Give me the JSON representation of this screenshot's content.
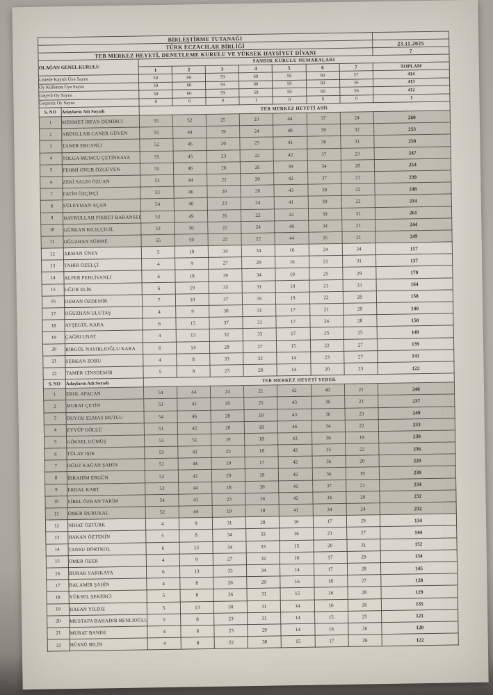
{
  "colors": {
    "paper": "#d6d3ca",
    "highlight_row": "#c4c1b6",
    "border": "#4a473f"
  },
  "document": {
    "title": "BİRLEŞTİRME TUTANAĞI",
    "organization": "TÜRK ECZACILAR BİRLİĞİ",
    "subtitle": "TEB MERKEZ HEYETİ, DENETLEME KURULU VE YÜKSEK HAYSİYET DİVANI",
    "date": "23.11.2025",
    "ballot_box_count": "7",
    "left_header": "OLAĞAN GENEL KURULU",
    "columns_header": "SANDIK KURULU NUMARALARI",
    "ballot_columns": [
      "1",
      "2",
      "3",
      "4",
      "5",
      "6",
      "7"
    ],
    "total_label": "TOPLAM",
    "sno_label": "S. NO",
    "name_label": "Adayların Adı Soyadı",
    "stats": [
      {
        "label": "Listede Kayıtlı Üye Sayısı",
        "values": [
          "59",
          "60",
          "59",
          "60",
          "59",
          "60",
          "57"
        ],
        "total": "414"
      },
      {
        "label": "Oy Kullanan Üye Sayısı",
        "values": [
          "59",
          "60",
          "59",
          "60",
          "59",
          "60",
          "56"
        ],
        "total": "413"
      },
      {
        "label": "Geçerli Oy Sayısı",
        "values": [
          "59",
          "60",
          "59",
          "59",
          "59",
          "60",
          "56"
        ],
        "total": "412"
      },
      {
        "label": "Geçersiz Oy Sayısı",
        "values": [
          "0",
          "0",
          "0",
          "1",
          "0",
          "0",
          "0"
        ],
        "total": "1"
      }
    ],
    "sections": [
      {
        "title": "TEB MERKEZ HEYETİ ASİL",
        "candidates": [
          {
            "no": "1",
            "name": "MEHMET İRFAN DEMİRCİ",
            "votes": [
              "55",
              "52",
              "25",
              "23",
              "44",
              "37",
              "24"
            ],
            "total": "260"
          },
          {
            "no": "2",
            "name": "ABDULLAH CANER GÜVEN",
            "votes": [
              "55",
              "44",
              "19",
              "24",
              "40",
              "39",
              "32"
            ],
            "total": "253"
          },
          {
            "no": "3",
            "name": "TANER ERCANLI",
            "votes": [
              "52",
              "45",
              "20",
              "25",
              "41",
              "36",
              "31"
            ],
            "total": "250"
          },
          {
            "no": "4",
            "name": "TOLGA MUMCU ÇETİNKAYA",
            "votes": [
              "55",
              "45",
              "23",
              "22",
              "42",
              "37",
              "23"
            ],
            "total": "247"
          },
          {
            "no": "5",
            "name": "FEHMİ ONUR ÖZGÜVEN",
            "votes": [
              "55",
              "46",
              "26",
              "26",
              "39",
              "34",
              "28"
            ],
            "total": "254"
          },
          {
            "no": "6",
            "name": "ZEKİ SALİH ÖZCAN",
            "votes": [
              "53",
              "44",
              "22",
              "20",
              "42",
              "37",
              "21"
            ],
            "total": "239"
          },
          {
            "no": "7",
            "name": "FATİH ÖZÇİFÇİ",
            "votes": [
              "53",
              "46",
              "20",
              "26",
              "43",
              "38",
              "22"
            ],
            "total": "248"
          },
          {
            "no": "8",
            "name": "SÜLEYMAN AÇAR",
            "votes": [
              "54",
              "40",
              "23",
              "24",
              "41",
              "30",
              "22"
            ],
            "total": "234"
          },
          {
            "no": "9",
            "name": "HAYRULLAH FİKRET BARANSEL",
            "votes": [
              "52",
              "49",
              "26",
              "22",
              "42",
              "39",
              "31"
            ],
            "total": "261"
          },
          {
            "no": "10",
            "name": "GÜRKAN KILIÇÇIGİL",
            "votes": [
              "53",
              "50",
              "22",
              "24",
              "40",
              "34",
              "21"
            ],
            "total": "244"
          },
          {
            "no": "11",
            "name": "OĞUZHAN SÜRME",
            "votes": [
              "55",
              "50",
              "22",
              "22",
              "44",
              "35",
              "21"
            ],
            "total": "249"
          },
          {
            "no": "12",
            "name": "ARMAN ÜNEY",
            "votes": [
              "5",
              "10",
              "34",
              "34",
              "16",
              "24",
              "34"
            ],
            "total": "157"
          },
          {
            "no": "13",
            "name": "TAHİR ÖZELÇİ",
            "votes": [
              "4",
              "9",
              "27",
              "29",
              "16",
              "21",
              "31"
            ],
            "total": "137"
          },
          {
            "no": "14",
            "name": "ALPER PEHLİVANLI",
            "votes": [
              "6",
              "18",
              "39",
              "34",
              "19",
              "25",
              "29"
            ],
            "total": "170"
          },
          {
            "no": "15",
            "name": "UĞUR ELİK",
            "votes": [
              "6",
              "19",
              "35",
              "31",
              "19",
              "21",
              "33"
            ],
            "total": "164"
          },
          {
            "no": "16",
            "name": "OSMAN ÖZDEMİR",
            "votes": [
              "7",
              "10",
              "37",
              "35",
              "19",
              "22",
              "28"
            ],
            "total": "158"
          },
          {
            "no": "17",
            "name": "OĞUZHAN ULUTAŞ",
            "votes": [
              "4",
              "9",
              "30",
              "31",
              "17",
              "21",
              "28"
            ],
            "total": "140"
          },
          {
            "no": "18",
            "name": "AYŞEGÜL KARA",
            "votes": [
              "6",
              "15",
              "37",
              "31",
              "17",
              "24",
              "28"
            ],
            "total": "158"
          },
          {
            "no": "19",
            "name": "ÇAĞRI UNAT",
            "votes": [
              "4",
              "13",
              "32",
              "33",
              "17",
              "25",
              "25"
            ],
            "total": "149"
          },
          {
            "no": "20",
            "name": "BİRGÜL NASIRLIOĞLU KARA",
            "votes": [
              "6",
              "14",
              "28",
              "27",
              "15",
              "22",
              "27"
            ],
            "total": "139"
          },
          {
            "no": "21",
            "name": "SERKAN ZOBU",
            "votes": [
              "4",
              "8",
              "33",
              "32",
              "14",
              "23",
              "27"
            ],
            "total": "141"
          },
          {
            "no": "22",
            "name": "TAMER CİNSDEMİR",
            "votes": [
              "5",
              "9",
              "23",
              "28",
              "14",
              "20",
              "23"
            ],
            "total": "122"
          }
        ]
      },
      {
        "title": "TEB MERKEZ HEYETİ YEDEK",
        "candidates": [
          {
            "no": "1",
            "name": "EROL AFACAN",
            "votes": [
              "54",
              "44",
              "24",
              "21",
              "42",
              "40",
              "21"
            ],
            "total": "246"
          },
          {
            "no": "2",
            "name": "MURAT ÇETİN",
            "votes": [
              "53",
              "43",
              "20",
              "21",
              "43",
              "36",
              "21"
            ],
            "total": "237"
          },
          {
            "no": "3",
            "name": "DUYGU ELMAS MUTLU",
            "votes": [
              "54",
              "46",
              "28",
              "19",
              "43",
              "36",
              "23"
            ],
            "total": "249"
          },
          {
            "no": "4",
            "name": "EYYÜP GÖLLÜ",
            "votes": [
              "51",
              "42",
              "20",
              "18",
              "46",
              "34",
              "22"
            ],
            "total": "233"
          },
          {
            "no": "5",
            "name": "GÖKSEL GÜMÜŞ",
            "votes": [
              "53",
              "51",
              "19",
              "18",
              "43",
              "36",
              "19"
            ],
            "total": "239"
          },
          {
            "no": "6",
            "name": "TÜLAY IŞIK",
            "votes": [
              "53",
              "42",
              "23",
              "18",
              "43",
              "35",
              "22"
            ],
            "total": "236"
          },
          {
            "no": "7",
            "name": "OĞUZ KAĞAN ŞAHİN",
            "votes": [
              "51",
              "44",
              "19",
              "17",
              "42",
              "36",
              "20"
            ],
            "total": "229"
          },
          {
            "no": "8",
            "name": "İBRAHİM ERGÜN",
            "votes": [
              "52",
              "42",
              "20",
              "19",
              "42",
              "36",
              "19"
            ],
            "total": "230"
          },
          {
            "no": "9",
            "name": "ERDAL KART",
            "votes": [
              "53",
              "44",
              "18",
              "20",
              "41",
              "37",
              "21"
            ],
            "total": "234"
          },
          {
            "no": "10",
            "name": "SİBEL ÖZKAN TARİM",
            "votes": [
              "54",
              "43",
              "23",
              "16",
              "42",
              "34",
              "20"
            ],
            "total": "232"
          },
          {
            "no": "11",
            "name": "ÖMER DURUKAL",
            "votes": [
              "52",
              "44",
              "19",
              "18",
              "41",
              "34",
              "24"
            ],
            "total": "232"
          },
          {
            "no": "12",
            "name": "NİHAT ÖZTÜRK",
            "votes": [
              "4",
              "9",
              "31",
              "28",
              "16",
              "17",
              "29"
            ],
            "total": "134"
          },
          {
            "no": "13",
            "name": "HAKAN ÖZTEKİN",
            "votes": [
              "5",
              "8",
              "34",
              "33",
              "16",
              "21",
              "27"
            ],
            "total": "144"
          },
          {
            "no": "14",
            "name": "TANSU DÖRTKOL",
            "votes": [
              "6",
              "13",
              "34",
              "33",
              "15",
              "20",
              "31"
            ],
            "total": "152"
          },
          {
            "no": "15",
            "name": "ÖMER ÖZER",
            "votes": [
              "4",
              "9",
              "27",
              "32",
              "16",
              "17",
              "29"
            ],
            "total": "134"
          },
          {
            "no": "16",
            "name": "BURAK SARIKAYA",
            "votes": [
              "6",
              "13",
              "33",
              "34",
              "14",
              "17",
              "28"
            ],
            "total": "145"
          },
          {
            "no": "17",
            "name": "BALAMİR ŞAHİN",
            "votes": [
              "4",
              "8",
              "26",
              "29",
              "16",
              "18",
              "27"
            ],
            "total": "128"
          },
          {
            "no": "18",
            "name": "YÜKSEL ŞEKERCİ",
            "votes": [
              "5",
              "8",
              "26",
              "31",
              "15",
              "16",
              "28"
            ],
            "total": "129"
          },
          {
            "no": "19",
            "name": "HASAN YILDIZ",
            "votes": [
              "5",
              "13",
              "30",
              "31",
              "14",
              "16",
              "26"
            ],
            "total": "135"
          },
          {
            "no": "20",
            "name": "MUSTAFA BAHADIR BENLİOĞLU",
            "votes": [
              "5",
              "8",
              "23",
              "31",
              "14",
              "15",
              "25"
            ],
            "total": "121"
          },
          {
            "no": "21",
            "name": "MURAT BANISI",
            "votes": [
              "4",
              "8",
              "23",
              "29",
              "14",
              "16",
              "26"
            ],
            "total": "120"
          },
          {
            "no": "22",
            "name": "HÜSNÜ BİLİN",
            "votes": [
              "4",
              "8",
              "22",
              "30",
              "15",
              "17",
              "26"
            ],
            "total": "122"
          }
        ]
      }
    ]
  }
}
